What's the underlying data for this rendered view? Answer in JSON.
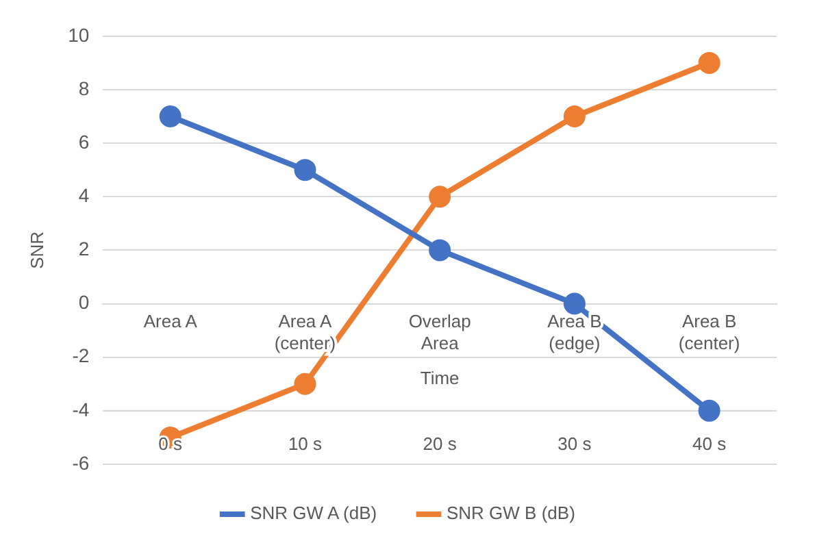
{
  "chart_data": {
    "type": "line",
    "xlabel": "Time",
    "ylabel": "SNR",
    "categories": [
      "Area A",
      "Area A (center)",
      "Overlap Area",
      "Area B (edge)",
      "Area B (center)"
    ],
    "series": [
      {
        "name": "SNR GW A (dB)",
        "color": "#4472c4",
        "values": [
          7,
          5,
          2,
          0,
          -4
        ]
      },
      {
        "name": "SNR GW B (dB)",
        "color": "#ed7d31",
        "values": [
          -5,
          -3,
          4,
          7,
          9
        ]
      }
    ],
    "annotations": [
      "0 s",
      "10 s",
      "20 s",
      "30 s",
      "40 s"
    ],
    "ylim": [
      -6,
      10
    ],
    "yticks": [
      -6,
      -4,
      -2,
      0,
      2,
      4,
      6,
      8,
      10
    ],
    "grid": "y",
    "legend": "bottom",
    "marker": "circle",
    "line_style": "solid"
  }
}
